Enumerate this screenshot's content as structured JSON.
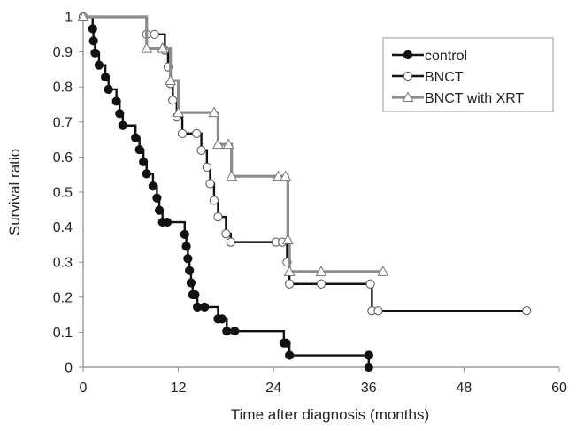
{
  "chart_data": {
    "type": "line",
    "title": "",
    "xlabel": "Time after diagnosis (months)",
    "ylabel": "Survival ratio",
    "xlim": [
      0,
      60
    ],
    "ylim": [
      0,
      1
    ],
    "x_ticks": [
      "0",
      "12",
      "24",
      "36",
      "48",
      "60"
    ],
    "y_ticks": [
      "0",
      "0.1",
      "0.2",
      "0.3",
      "0.4",
      "0.5",
      "0.6",
      "0.7",
      "0.8",
      "0.9",
      "1"
    ],
    "grid": false,
    "legend_position": "top-right",
    "step": true,
    "series": [
      {
        "name": "control",
        "color": "#111111",
        "marker": "filled-circle",
        "x": [
          0,
          1.2,
          1.3,
          1.5,
          2.0,
          2.8,
          3.2,
          4.2,
          4.6,
          5.0,
          6.6,
          7.1,
          7.6,
          8.0,
          8.8,
          9.3,
          9.6,
          10.0,
          10.6,
          12.8,
          13.0,
          13.2,
          13.4,
          13.6,
          13.8,
          14.1,
          14.4,
          15.3,
          17.0,
          17.5,
          18.1,
          19.1,
          25.3,
          25.6,
          26.0,
          36.0,
          36.0
        ],
        "y": [
          1.0,
          0.966,
          0.931,
          0.897,
          0.862,
          0.828,
          0.793,
          0.759,
          0.724,
          0.69,
          0.655,
          0.621,
          0.586,
          0.552,
          0.517,
          0.483,
          0.448,
          0.414,
          0.414,
          0.379,
          0.345,
          0.31,
          0.276,
          0.241,
          0.207,
          0.207,
          0.172,
          0.172,
          0.138,
          0.138,
          0.103,
          0.103,
          0.069,
          0.069,
          0.034,
          0.034,
          0.0
        ]
      },
      {
        "name": "BNCT",
        "color": "#111111",
        "marker": "open-circle",
        "x": [
          0,
          8.0,
          9.0,
          10.3,
          10.7,
          11.0,
          11.3,
          11.8,
          12.5,
          14.3,
          14.9,
          15.6,
          16.0,
          16.5,
          17.0,
          18.0,
          18.6,
          24.3,
          25.1,
          25.7,
          26.0,
          30.0,
          36.2,
          36.4,
          37.2,
          55.9
        ],
        "y": [
          1.0,
          0.95,
          0.95,
          0.905,
          0.857,
          0.81,
          0.762,
          0.714,
          0.667,
          0.667,
          0.619,
          0.571,
          0.524,
          0.476,
          0.429,
          0.381,
          0.357,
          0.357,
          0.357,
          0.3,
          0.238,
          0.238,
          0.238,
          0.161,
          0.161,
          0.161
        ]
      },
      {
        "name": "BNCT with XRT",
        "color": "#8c8c8c",
        "marker": "open-triangle",
        "x": [
          0,
          8.0,
          10.0,
          11.0,
          12.0,
          16.5,
          17.0,
          18.3,
          18.7,
          24.6,
          25.5,
          25.8,
          26.0,
          30.0,
          37.8
        ],
        "y": [
          1.0,
          0.91,
          0.91,
          0.818,
          0.727,
          0.727,
          0.636,
          0.636,
          0.545,
          0.545,
          0.545,
          0.364,
          0.273,
          0.273,
          0.273
        ]
      }
    ]
  }
}
